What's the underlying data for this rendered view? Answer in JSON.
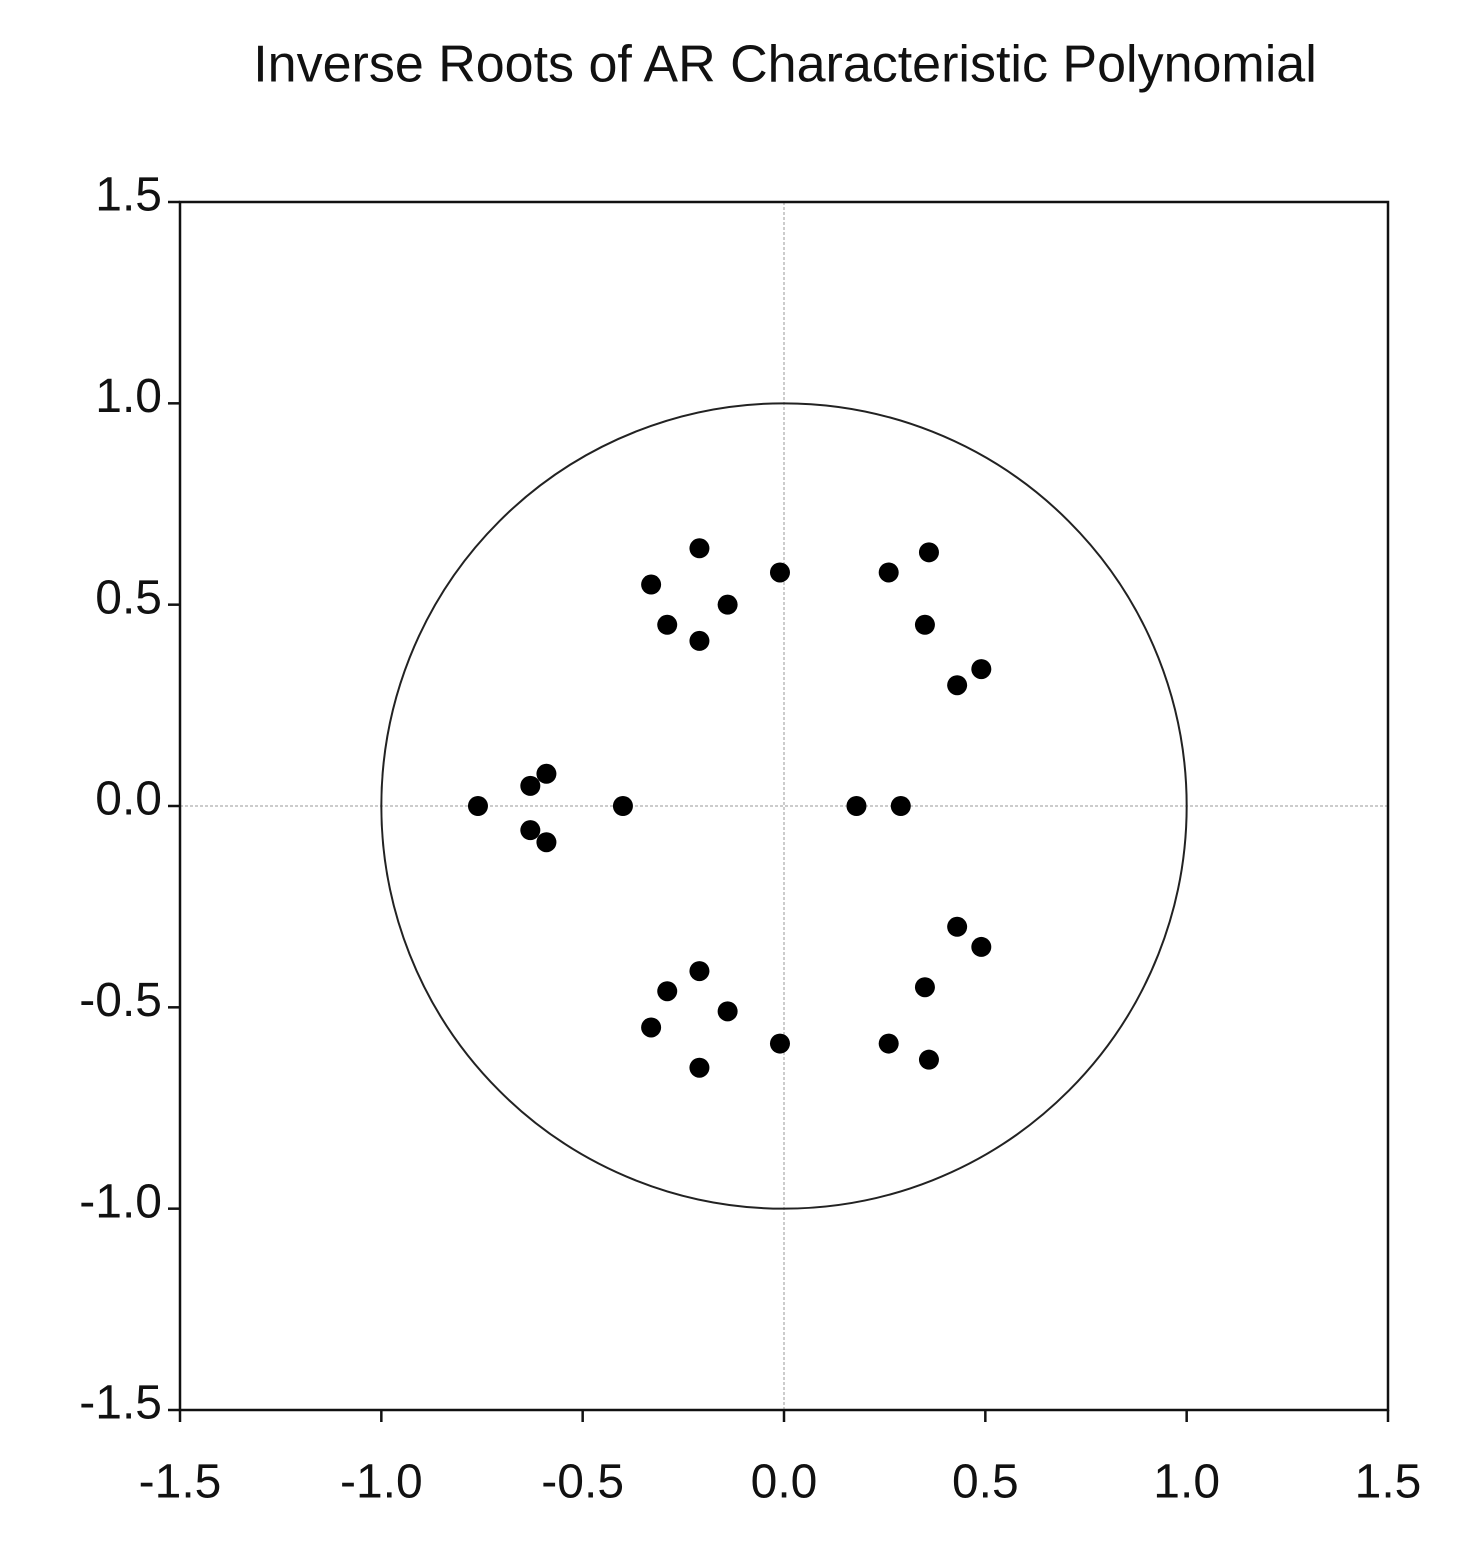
{
  "chart_data": {
    "type": "scatter",
    "title": "Inverse Roots of AR Characteristic Polynomial",
    "x": [
      -0.21,
      -0.33,
      -0.14,
      -0.29,
      -0.21,
      -0.01,
      0.26,
      0.36,
      0.35,
      0.49,
      0.43,
      -0.76,
      -0.63,
      -0.59,
      -0.4,
      -0.63,
      -0.59,
      0.18,
      0.29,
      0.43,
      0.49,
      0.35,
      0.26,
      0.36,
      -0.01,
      -0.21,
      -0.29,
      -0.14,
      -0.33,
      -0.21
    ],
    "values": [
      0.64,
      0.55,
      0.5,
      0.45,
      0.41,
      0.58,
      0.58,
      0.63,
      0.45,
      0.34,
      0.3,
      0,
      0.05,
      0.08,
      0,
      -0.06,
      -0.09,
      0,
      0,
      -0.3,
      -0.35,
      -0.45,
      -0.59,
      -0.63,
      -0.59,
      -0.41,
      -0.46,
      -0.51,
      -0.55,
      -0.65
    ],
    "color": "#000000",
    "xlim": [
      -1.5,
      1.5
    ],
    "ylim": [
      -1.5,
      1.5
    ],
    "xticks": [
      -1.5,
      {
        "value": -1,
        "label": "-1.0"
      },
      -0.5,
      {
        "value": 0,
        "label": "0.0"
      },
      0.5,
      {
        "value": 1,
        "label": "1.0"
      },
      1.5
    ],
    "yticks": [
      -1.5,
      {
        "value": -1,
        "label": "-1.0"
      },
      -0.5,
      {
        "value": 0,
        "label": "0.0"
      },
      0.5,
      {
        "value": 1,
        "label": "1.0"
      },
      1.5
    ],
    "unit_circle": true,
    "zero_lines": true
  }
}
